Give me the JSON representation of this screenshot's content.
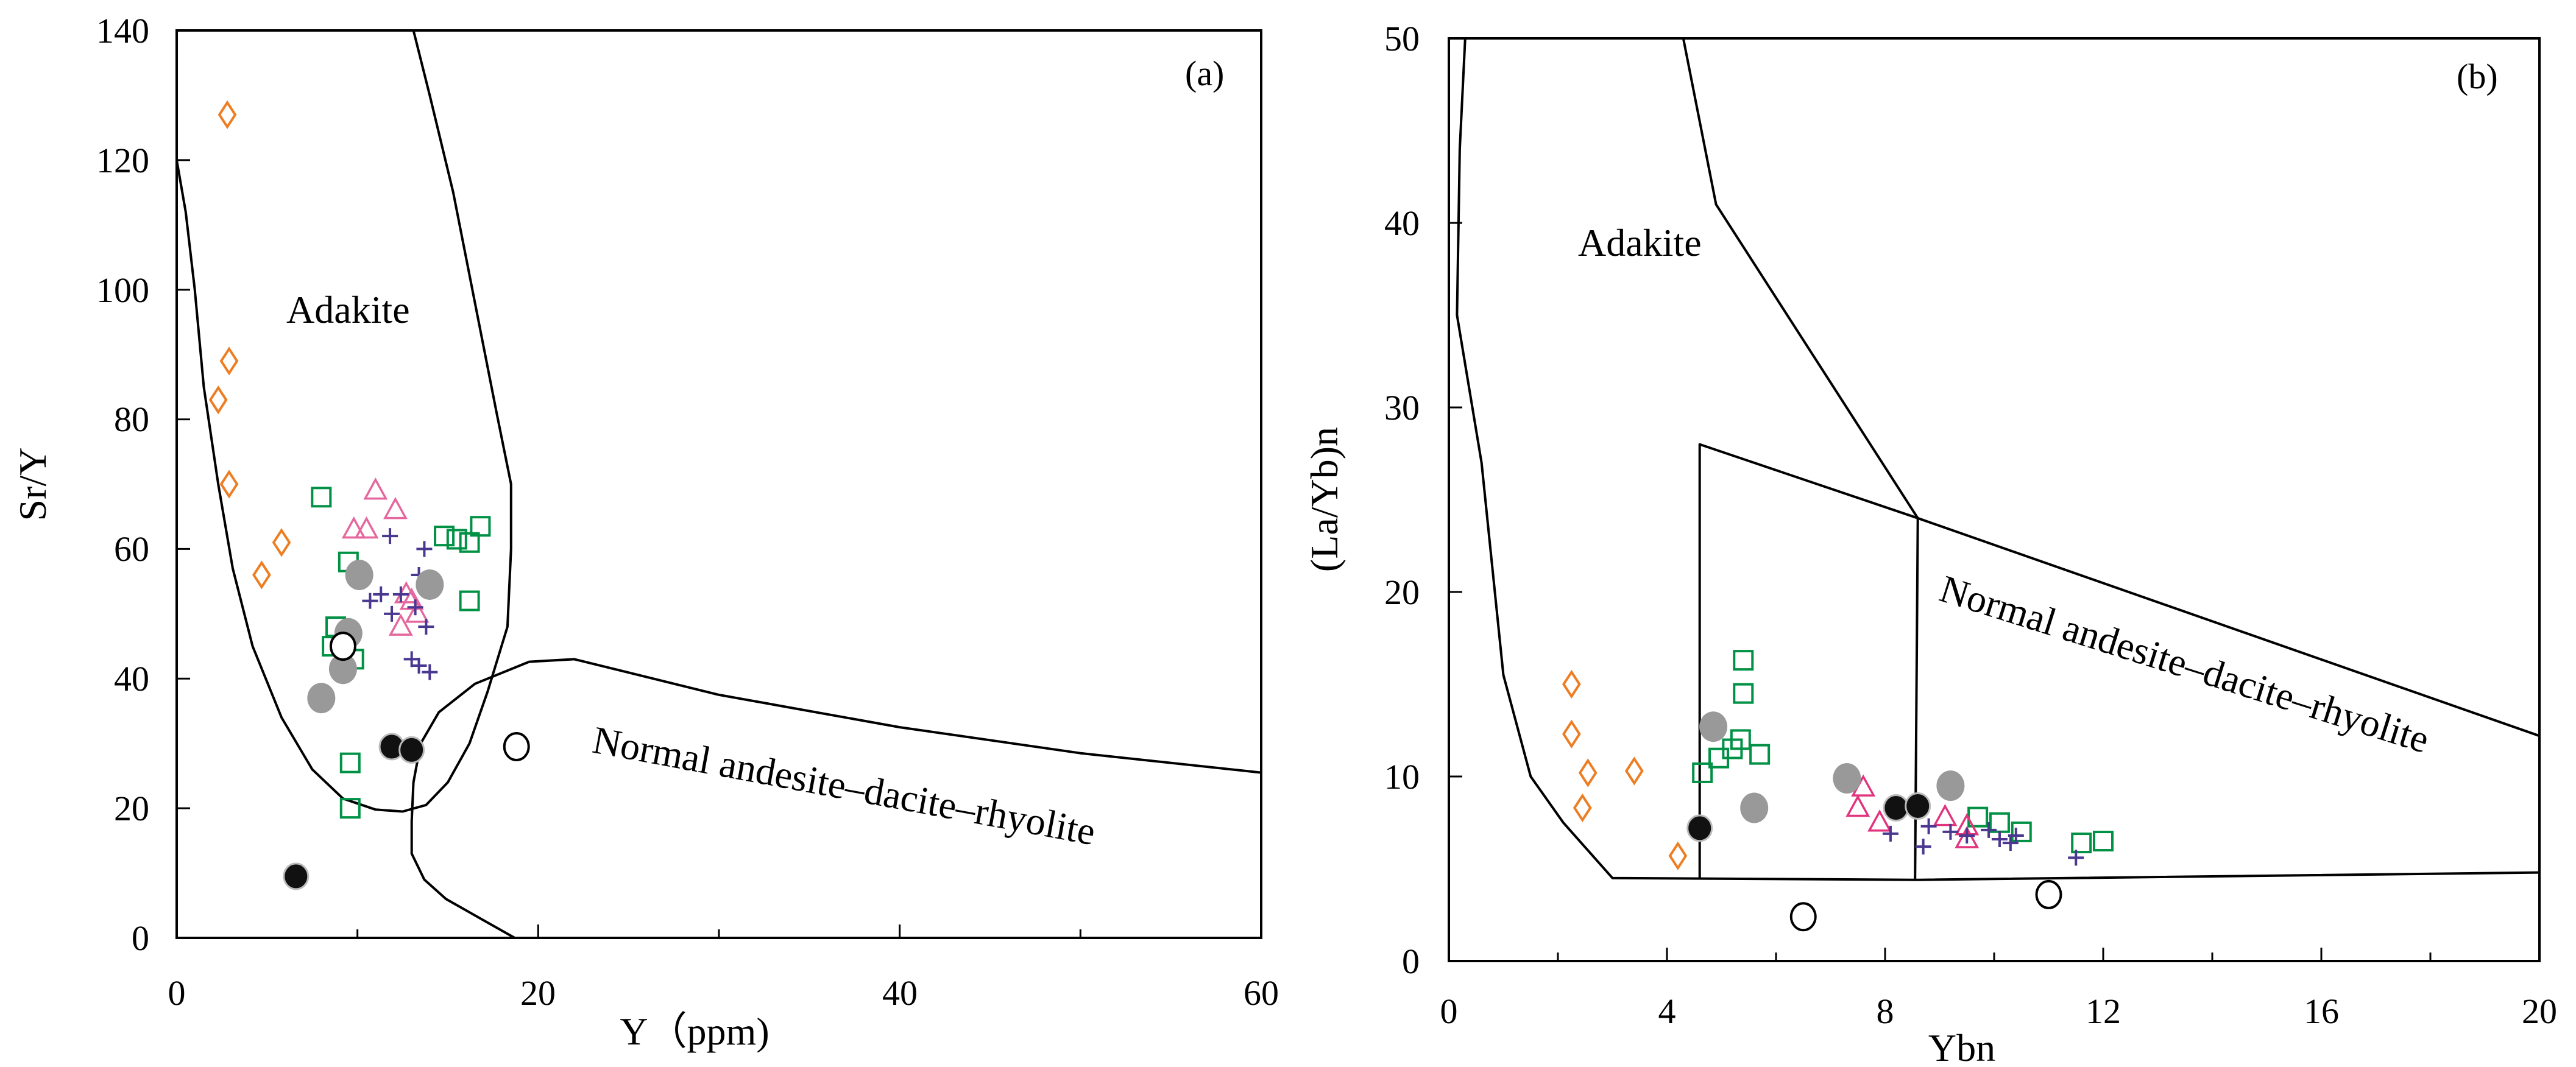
{
  "chart_data": [
    {
      "type": "scatter",
      "panel_label": "(a)",
      "xlabel": "Y（ppm)",
      "ylabel": "Sr/Y",
      "xlim": [
        0,
        60
      ],
      "ylim": [
        0,
        140
      ],
      "xticks": [
        "0",
        "20",
        "40",
        "60"
      ],
      "yticks": [
        "0",
        "20",
        "40",
        "60",
        "80",
        "100",
        "120",
        "140"
      ],
      "grid": false,
      "field_labels": [
        "Adakite",
        "Normal andesite–dacite–rhyolite"
      ],
      "field_boundaries": [
        {
          "name": "adakite-field",
          "points": [
            [
              0,
              120
            ],
            [
              0.5,
              112
            ],
            [
              1,
              100
            ],
            [
              1.5,
              85
            ],
            [
              2.3,
              70
            ],
            [
              3.1,
              57
            ],
            [
              4.2,
              45
            ],
            [
              5.8,
              34
            ],
            [
              7.5,
              26
            ],
            [
              9.2,
              21.5
            ],
            [
              11,
              19.8
            ],
            [
              12.5,
              19.5
            ],
            [
              13.8,
              20.5
            ],
            [
              15,
              24
            ],
            [
              16.2,
              30
            ],
            [
              17.2,
              38
            ],
            [
              18.3,
              48
            ],
            [
              18.5,
              60
            ],
            [
              18.5,
              70
            ],
            [
              17.7,
              81
            ],
            [
              16.5,
              98
            ],
            [
              15.3,
              115
            ],
            [
              14,
              130
            ],
            [
              13.1,
              140
            ]
          ]
        },
        {
          "name": "normal-field",
          "points": [
            [
              18.7,
              0
            ],
            [
              16.8,
              3
            ],
            [
              14.9,
              6
            ],
            [
              13.7,
              9
            ],
            [
              13,
              13
            ],
            [
              13,
              18
            ],
            [
              13.1,
              24
            ],
            [
              13.5,
              30
            ],
            [
              14.5,
              34.8
            ],
            [
              16.5,
              39.2
            ],
            [
              19.5,
              42.6
            ],
            [
              22,
              43
            ],
            [
              30,
              37.5
            ],
            [
              40,
              32.5
            ],
            [
              50,
              28.5
            ],
            [
              60,
              25.5
            ]
          ]
        }
      ],
      "series": [
        {
          "name": "orange open diamonds",
          "marker": "diamond-open",
          "color": "#ee7d22",
          "x": [
            2.8,
            2.9,
            2.3,
            2.9,
            4.7,
            5.8
          ],
          "y": [
            127,
            89,
            83,
            70,
            56,
            61
          ]
        },
        {
          "name": "green open squares",
          "marker": "square-open",
          "color": "#009145",
          "x": [
            8,
            8.8,
            9.5,
            8.6,
            9.8,
            9.6,
            9.6,
            14.8,
            15.5,
            16.2,
            16.8,
            16.2
          ],
          "y": [
            68,
            48,
            58,
            45,
            43,
            27,
            20,
            62,
            61.5,
            61,
            63.5,
            52
          ]
        },
        {
          "name": "pink open triangles",
          "marker": "triangle-open",
          "color": "#e5679d",
          "x": [
            11,
            12.1,
            9.8,
            10.5,
            12.7,
            13,
            13.3,
            12.4
          ],
          "y": [
            69,
            66,
            63,
            63,
            53,
            52,
            50,
            48
          ]
        },
        {
          "name": "purple crosses",
          "marker": "cross",
          "color": "#4a3790",
          "x": [
            11.8,
            13.7,
            11.3,
            11.9,
            13.4,
            13.2,
            10.7,
            12.4,
            13.8,
            13,
            13.4,
            14
          ],
          "y": [
            62,
            60,
            53,
            50,
            56,
            51,
            52,
            53,
            48,
            43,
            42,
            41
          ]
        },
        {
          "name": "gray filled circles",
          "marker": "circle-gray",
          "color": "#999999",
          "x": [
            10.1,
            14,
            9.2,
            8,
            9.5
          ],
          "y": [
            56,
            54.5,
            41.5,
            37,
            47
          ]
        },
        {
          "name": "white open circles",
          "marker": "circle-open",
          "color": "#000000",
          "x": [
            9.2,
            18.8
          ],
          "y": [
            45,
            29.5
          ]
        },
        {
          "name": "black filled circles",
          "marker": "circle-black",
          "color": "#111111",
          "x": [
            11.9,
            13,
            6.6
          ],
          "y": [
            29.5,
            29,
            9.5
          ]
        }
      ]
    },
    {
      "type": "scatter",
      "panel_label": "(b)",
      "xlabel": "Ybn",
      "ylabel": "(La/Yb)n",
      "xlim": [
        0,
        20
      ],
      "ylim": [
        0,
        50
      ],
      "xticks": [
        "0",
        "4",
        "8",
        "12",
        "16",
        "20"
      ],
      "yticks": [
        "0",
        "10",
        "20",
        "30",
        "40",
        "50"
      ],
      "grid": false,
      "field_labels": [
        "Adakite",
        "Normal andesite–dacite–rhyolite"
      ],
      "field_boundaries": [
        {
          "name": "adakite-outer",
          "points": [
            [
              0.3,
              50
            ],
            [
              0.2,
              44
            ],
            [
              0.15,
              35
            ],
            [
              0.6,
              27
            ],
            [
              1.0,
              15.5
            ],
            [
              1.5,
              10
            ],
            [
              2.1,
              7.5
            ],
            [
              3,
              4.5
            ],
            [
              8.6,
              4.4
            ],
            [
              20,
              4.8
            ]
          ]
        },
        {
          "name": "upper-line",
          "points": [
            [
              4.3,
              50
            ],
            [
              4.9,
              41
            ],
            [
              8.6,
              24
            ]
          ]
        },
        {
          "name": "normal-box",
          "points": [
            [
              4.6,
              4.5
            ],
            [
              4.6,
              28
            ],
            [
              8.6,
              24
            ],
            [
              20,
              12.2
            ]
          ]
        },
        {
          "name": "divider",
          "points": [
            [
              8.6,
              24
            ],
            [
              8.55,
              4.4
            ]
          ]
        }
      ],
      "series": [
        {
          "name": "orange open diamonds",
          "marker": "diamond-open",
          "color": "#ee7d22",
          "x": [
            2.25,
            2.25,
            2.55,
            2.45,
            3.4,
            4.2
          ],
          "y": [
            15,
            12.3,
            10.2,
            8.3,
            10.3,
            5.7
          ]
        },
        {
          "name": "green open squares",
          "marker": "square-open",
          "color": "#009145",
          "x": [
            5.4,
            5.4,
            5.35,
            5.2,
            5.7,
            4.95,
            4.65,
            9.7,
            10.1,
            10.5,
            11.6,
            12
          ],
          "y": [
            16.3,
            14.5,
            12,
            11.5,
            11.2,
            11,
            10.2,
            7.8,
            7.5,
            7,
            6.4,
            6.5
          ]
        },
        {
          "name": "pink open triangles",
          "marker": "triangle-open",
          "color": "#e2337e",
          "x": [
            7.6,
            7.5,
            7.9,
            9.1,
            9.5,
            9.5
          ],
          "y": [
            9.4,
            8.3,
            7.5,
            7.8,
            7.3,
            6.6
          ]
        },
        {
          "name": "purple crosses",
          "marker": "cross",
          "color": "#4a3790",
          "x": [
            8.1,
            8.7,
            8.8,
            9.2,
            9.5,
            9.9,
            10.1,
            10.3,
            10.4,
            11.5
          ],
          "y": [
            6.9,
            6.2,
            7.3,
            7,
            6.8,
            7.1,
            6.6,
            6.4,
            6.8,
            5.6
          ]
        },
        {
          "name": "gray filled circles",
          "marker": "circle-gray",
          "color": "#999999",
          "x": [
            4.85,
            5.6,
            7.3,
            9.2
          ],
          "y": [
            12.7,
            8.3,
            9.9,
            9.5
          ]
        },
        {
          "name": "white open circles",
          "marker": "circle-open",
          "color": "#000000",
          "x": [
            6.5,
            11
          ],
          "y": [
            2.4,
            3.6
          ]
        },
        {
          "name": "black filled circles",
          "marker": "circle-black",
          "color": "#111111",
          "x": [
            4.6,
            8.2,
            8.6
          ],
          "y": [
            7.2,
            8.3,
            8.4
          ]
        }
      ]
    }
  ]
}
